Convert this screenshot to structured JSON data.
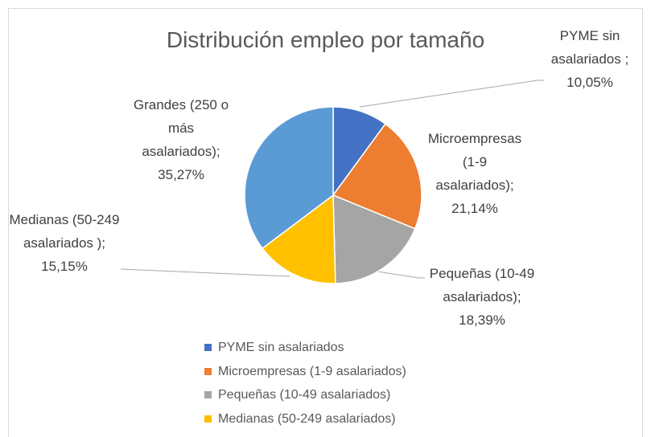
{
  "chart_data": {
    "type": "pie",
    "title": "Distribución empleo por tamaño",
    "categories": [
      "PYME sin asalariados",
      "Microempresas (1-9 asalariados)",
      "Pequeñas (10-49 asalariados)",
      "Medianas (50-249 asalariados)",
      "Grandes (250 o más asalariados)"
    ],
    "values": [
      10.05,
      21.14,
      18.39,
      15.15,
      35.27
    ],
    "value_labels": [
      "PYME sin asalariados ; 10,05%",
      "Microempresas (1-9 asalariados); 21,14%",
      "Pequeñas (10-49 asalariados); 18,39%",
      "Medianas (50-249 asalariados ); 15,15%",
      "Grandes (250 o más asalariados); 35,27%"
    ],
    "colors": [
      "#4472c4",
      "#ed7d31",
      "#a5a5a5",
      "#ffc000",
      "#5b9bd5"
    ],
    "legend": "bottom"
  }
}
